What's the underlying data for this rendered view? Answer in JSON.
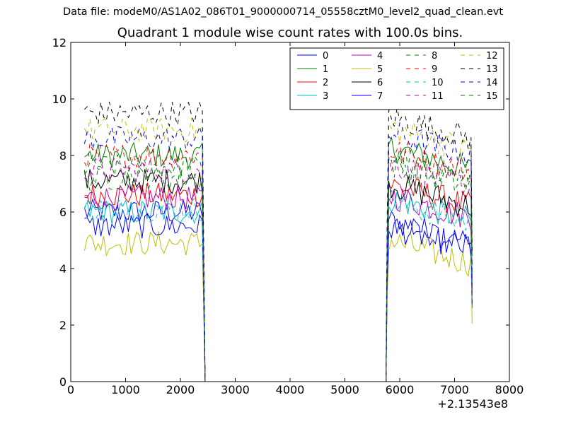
{
  "page_title": "Data file: modeM0/AS1A02_086T01_9000000714_05558cztM0_level2_quad_clean.evt",
  "chart_data": {
    "type": "line",
    "title": "Quadrant 1 module wise count rates with 100.0s bins.",
    "xlabel": "",
    "ylabel": "",
    "x_offset_label": "+2.13543e8",
    "xlim": [
      0,
      8000
    ],
    "ylim": [
      0,
      12
    ],
    "xticks": [
      0,
      1000,
      2000,
      3000,
      4000,
      5000,
      6000,
      7000,
      8000
    ],
    "yticks": [
      0,
      2,
      4,
      6,
      8,
      10,
      12
    ],
    "legend_position": "top-right",
    "legend_columns": 4,
    "series": [
      {
        "name": "0",
        "color": "#0000ff",
        "dashed": false,
        "level1": 6.0,
        "level2": 5.7
      },
      {
        "name": "1",
        "color": "#008000",
        "dashed": false,
        "level1": 8.0,
        "level2": 8.3
      },
      {
        "name": "2",
        "color": "#ff0000",
        "dashed": false,
        "level1": 6.6,
        "level2": 7.0
      },
      {
        "name": "3",
        "color": "#00bfbf",
        "dashed": false,
        "level1": 6.0,
        "level2": 6.5
      },
      {
        "name": "4",
        "color": "#bf00bf",
        "dashed": false,
        "level1": 6.5,
        "level2": 6.6
      },
      {
        "name": "5",
        "color": "#bfbf00",
        "dashed": false,
        "level1": 4.9,
        "level2": 5.0
      },
      {
        "name": "6",
        "color": "#000000",
        "dashed": false,
        "level1": 7.1,
        "level2": 7.0
      },
      {
        "name": "7",
        "color": "#0000ff",
        "dashed": false,
        "level1": 5.5,
        "level2": 5.5
      },
      {
        "name": "8",
        "color": "#008000",
        "dashed": true,
        "level1": 7.6,
        "level2": 8.0
      },
      {
        "name": "9",
        "color": "#ff0000",
        "dashed": true,
        "level1": 8.0,
        "level2": 8.2
      },
      {
        "name": "10",
        "color": "#00bfbf",
        "dashed": true,
        "level1": 6.1,
        "level2": 6.4
      },
      {
        "name": "11",
        "color": "#bf00bf",
        "dashed": true,
        "level1": 7.5,
        "level2": 7.7
      },
      {
        "name": "12",
        "color": "#bfbf00",
        "dashed": true,
        "level1": 8.9,
        "level2": 9.0
      },
      {
        "name": "13",
        "color": "#000000",
        "dashed": true,
        "level1": 9.5,
        "level2": 9.4
      },
      {
        "name": "14",
        "color": "#0000ff",
        "dashed": true,
        "level1": 8.6,
        "level2": 8.8
      },
      {
        "name": "15",
        "color": "#008000",
        "dashed": true,
        "level1": 7.2,
        "level2": 7.7
      }
    ],
    "segments": [
      {
        "x_start": 250,
        "x_end": 2400
      },
      {
        "x_start": 5800,
        "x_end": 7300
      }
    ],
    "zero_range": [
      2450,
      5750
    ]
  }
}
